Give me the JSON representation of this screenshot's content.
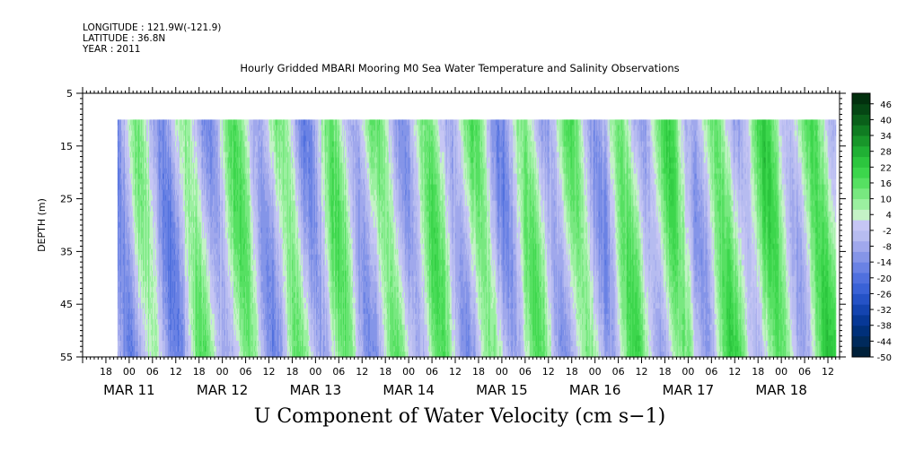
{
  "meta": {
    "longitude": "LONGITUDE : 121.9W(-121.9)",
    "latitude": "LATITUDE : 36.8N",
    "year": "YEAR : 2011"
  },
  "chart_data": {
    "type": "heatmap",
    "title": "Hourly Gridded MBARI Mooring M0 Sea Water Temperature and Salinity Observations",
    "caption": "U Component of Water Velocity (cm s−1)",
    "ylabel": "DEPTH (m)",
    "y_axis": {
      "range": [
        5,
        55
      ],
      "inverted": true,
      "ticks": [
        5,
        15,
        25,
        35,
        45,
        55
      ],
      "data_depth_range": [
        10,
        55
      ]
    },
    "x_axis": {
      "range": [
        "2011-03-10T12:00",
        "2011-03-18T15:00"
      ],
      "hour_labels": [
        {
          "t": "2011-03-10T18:00",
          "label": "18"
        },
        {
          "t": "2011-03-11T00:00",
          "label": "00"
        },
        {
          "t": "2011-03-11T06:00",
          "label": "06"
        },
        {
          "t": "2011-03-11T12:00",
          "label": "12"
        },
        {
          "t": "2011-03-11T18:00",
          "label": "18"
        },
        {
          "t": "2011-03-12T00:00",
          "label": "00"
        },
        {
          "t": "2011-03-12T06:00",
          "label": "06"
        },
        {
          "t": "2011-03-12T12:00",
          "label": "12"
        },
        {
          "t": "2011-03-12T18:00",
          "label": "18"
        },
        {
          "t": "2011-03-13T00:00",
          "label": "00"
        },
        {
          "t": "2011-03-13T06:00",
          "label": "06"
        },
        {
          "t": "2011-03-13T12:00",
          "label": "12"
        },
        {
          "t": "2011-03-13T18:00",
          "label": "18"
        },
        {
          "t": "2011-03-14T00:00",
          "label": "00"
        },
        {
          "t": "2011-03-14T06:00",
          "label": "06"
        },
        {
          "t": "2011-03-14T12:00",
          "label": "12"
        },
        {
          "t": "2011-03-14T18:00",
          "label": "18"
        },
        {
          "t": "2011-03-15T00:00",
          "label": "00"
        },
        {
          "t": "2011-03-15T06:00",
          "label": "06"
        },
        {
          "t": "2011-03-15T12:00",
          "label": "12"
        },
        {
          "t": "2011-03-15T18:00",
          "label": "18"
        },
        {
          "t": "2011-03-16T00:00",
          "label": "00"
        },
        {
          "t": "2011-03-16T06:00",
          "label": "06"
        },
        {
          "t": "2011-03-16T12:00",
          "label": "12"
        },
        {
          "t": "2011-03-16T18:00",
          "label": "18"
        },
        {
          "t": "2011-03-17T00:00",
          "label": "00"
        },
        {
          "t": "2011-03-17T06:00",
          "label": "06"
        },
        {
          "t": "2011-03-17T12:00",
          "label": "12"
        },
        {
          "t": "2011-03-17T18:00",
          "label": "18"
        },
        {
          "t": "2011-03-18T00:00",
          "label": "00"
        },
        {
          "t": "2011-03-18T06:00",
          "label": "06"
        },
        {
          "t": "2011-03-18T12:00",
          "label": "12"
        }
      ],
      "day_labels": [
        {
          "t": "2011-03-11T00:00",
          "label": "MAR 11"
        },
        {
          "t": "2011-03-12T00:00",
          "label": "MAR 12"
        },
        {
          "t": "2011-03-13T00:00",
          "label": "MAR 13"
        },
        {
          "t": "2011-03-14T00:00",
          "label": "MAR 14"
        },
        {
          "t": "2011-03-15T00:00",
          "label": "MAR 15"
        },
        {
          "t": "2011-03-16T00:00",
          "label": "MAR 16"
        },
        {
          "t": "2011-03-17T00:00",
          "label": "MAR 17"
        },
        {
          "t": "2011-03-18T00:00",
          "label": "MAR 18"
        }
      ],
      "data_time_range": [
        "2011-03-10T21:00",
        "2011-03-18T14:00"
      ]
    },
    "colorbar": {
      "range": [
        -50,
        50
      ],
      "labels": [
        46,
        40,
        34,
        28,
        22,
        16,
        10,
        4,
        -2,
        -8,
        -14,
        -20,
        -26,
        -32,
        -38,
        -44,
        -50
      ],
      "colors": [
        "#00203a",
        "#002a5c",
        "#00307a",
        "#073896",
        "#1444b0",
        "#2552c6",
        "#3a62d6",
        "#5070de",
        "#6a82e4",
        "#8595e8",
        "#a0a8ec",
        "#b7bcf0",
        "#c6c6f4",
        "#c4f2c6",
        "#9bf0a0",
        "#78e880",
        "#56e062",
        "#3cd64c",
        "#2cc63e",
        "#20b034",
        "#18962a",
        "#107c22",
        "#0a601a",
        "#054614",
        "#02300e"
      ]
    },
    "series_note": "contoured field of U velocity vs time and depth",
    "field": {
      "hours_relative_to": "2011-03-10T21:00",
      "tidal_period_h": 12.42,
      "tidal_phase_h": 14,
      "base_by_day": [
        {
          "t": "2011-03-10T21:00",
          "u": -6
        },
        {
          "t": "2011-03-12T00:00",
          "u": 2
        },
        {
          "t": "2011-03-13T00:00",
          "u": 0
        },
        {
          "t": "2011-03-14T00:00",
          "u": 3
        },
        {
          "t": "2011-03-15T00:00",
          "u": 1
        },
        {
          "t": "2011-03-16T00:00",
          "u": 2
        },
        {
          "t": "2011-03-17T00:00",
          "u": 4
        },
        {
          "t": "2011-03-18T00:00",
          "u": 6
        },
        {
          "t": "2011-03-18T14:00",
          "u": 10
        }
      ],
      "amplitude": 13
    }
  }
}
